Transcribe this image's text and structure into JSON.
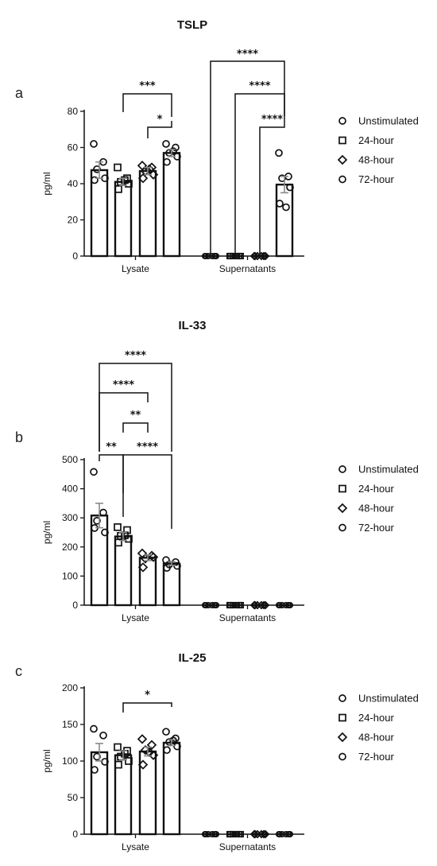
{
  "figure": {
    "panels": [
      {
        "letter": "a",
        "title": "TSLP"
      },
      {
        "letter": "b",
        "title": "IL-33"
      },
      {
        "letter": "c",
        "title": "IL-25"
      }
    ]
  },
  "chart_data": [
    {
      "type": "bar",
      "title": "TSLP",
      "panel_label": "a",
      "ylabel": "pg/ml",
      "ylim": [
        0,
        80
      ],
      "yticks": [
        0,
        20,
        40,
        60,
        80
      ],
      "groups": [
        "Lysate",
        "Supernatants"
      ],
      "legend": {
        "position": "right",
        "entries": [
          "Unstimulated",
          "24-hour",
          "48-hour",
          "72-hour"
        ],
        "markers": [
          "circle",
          "square",
          "diamond",
          "circle"
        ]
      },
      "series": [
        {
          "name": "Unstimulated",
          "values": [
            47.5,
            0
          ],
          "error": [
            4.5,
            0
          ],
          "points": [
            [
              62,
              52,
              48,
              43,
              42
            ],
            [
              0,
              0,
              0,
              0,
              0,
              0
            ]
          ]
        },
        {
          "name": "24-hour",
          "values": [
            41,
            0
          ],
          "error": [
            2,
            0
          ],
          "points": [
            [
              49,
              43,
              41,
              40,
              37,
              42
            ],
            [
              0,
              0,
              0,
              0,
              0,
              0
            ]
          ]
        },
        {
          "name": "48-hour",
          "values": [
            47,
            0
          ],
          "error": [
            2,
            0
          ],
          "points": [
            [
              50,
              49,
              47,
              45,
              43,
              48
            ],
            [
              0,
              0,
              0,
              0,
              0,
              0
            ]
          ]
        },
        {
          "name": "72-hour",
          "values": [
            57,
            39.5
          ],
          "error": [
            2,
            4.5
          ],
          "points": [
            [
              62,
              60,
              57,
              55,
              52,
              58
            ],
            [
              57,
              44,
              43,
              38,
              29,
              27
            ]
          ]
        }
      ],
      "annotations": [
        {
          "text": "***",
          "from": [
            0,
            1
          ],
          "to": [
            0,
            3
          ],
          "y": 71
        },
        {
          "text": "*",
          "from": [
            0,
            2
          ],
          "to": [
            0,
            3
          ],
          "y": 71
        },
        {
          "text": "****",
          "from": [
            1,
            0
          ],
          "to": [
            1,
            3
          ],
          "y": 71
        },
        {
          "text": "****",
          "from": [
            1,
            1
          ],
          "to": [
            1,
            3
          ],
          "y": 71
        },
        {
          "text": "****",
          "from": [
            1,
            2
          ],
          "to": [
            1,
            3
          ],
          "y": 71
        }
      ]
    },
    {
      "type": "bar",
      "title": "IL-33",
      "panel_label": "b",
      "ylabel": "pg/ml",
      "ylim": [
        0,
        500
      ],
      "yticks": [
        0,
        100,
        200,
        300,
        400,
        500
      ],
      "groups": [
        "Lysate",
        "Supernatants"
      ],
      "legend": {
        "position": "right",
        "entries": [
          "Unstimulated",
          "24-hour",
          "48-hour",
          "72-hour"
        ],
        "markers": [
          "circle",
          "square",
          "diamond",
          "circle"
        ]
      },
      "series": [
        {
          "name": "Unstimulated",
          "values": [
            308,
            0
          ],
          "error": [
            42,
            0
          ],
          "points": [
            [
              458,
              318,
              290,
              250,
              265
            ],
            [
              0,
              0,
              0,
              0,
              0,
              0
            ]
          ]
        },
        {
          "name": "24-hour",
          "values": [
            236,
            0
          ],
          "error": [
            14,
            0
          ],
          "points": [
            [
              268,
              258,
              238,
              228,
              215,
              240
            ],
            [
              0,
              0,
              0,
              0,
              0,
              0
            ]
          ]
        },
        {
          "name": "48-hour",
          "values": [
            163,
            0
          ],
          "error": [
            10,
            0
          ],
          "points": [
            [
              178,
              170,
              160,
              165,
              130
            ],
            [
              0,
              0,
              0,
              0,
              0,
              0
            ]
          ]
        },
        {
          "name": "72-hour",
          "values": [
            143,
            0
          ],
          "error": [
            6,
            0
          ],
          "points": [
            [
              155,
              148,
              140,
              135,
              128
            ],
            [
              0,
              0,
              0,
              0,
              0,
              0
            ]
          ]
        }
      ],
      "annotations": [
        {
          "text": "****",
          "from": [
            0,
            0
          ],
          "to": [
            0,
            3
          ],
          "y": 500
        },
        {
          "text": "****",
          "from": [
            0,
            0
          ],
          "to": [
            0,
            2
          ],
          "y": 500
        },
        {
          "text": "**",
          "from": [
            0,
            1
          ],
          "to": [
            0,
            2
          ],
          "y": 500
        },
        {
          "text": "**",
          "from": [
            0,
            0
          ],
          "to": [
            0,
            1
          ],
          "y": 500
        },
        {
          "text": "****",
          "from": [
            0,
            1
          ],
          "to": [
            0,
            3
          ],
          "y": 500
        }
      ]
    },
    {
      "type": "bar",
      "title": "IL-25",
      "panel_label": "c",
      "ylabel": "pg/ml",
      "ylim": [
        0,
        200
      ],
      "yticks": [
        0,
        50,
        100,
        150,
        200
      ],
      "groups": [
        "Lysate",
        "Supernatants"
      ],
      "legend": {
        "position": "right",
        "entries": [
          "Unstimulated",
          "24-hour",
          "48-hour",
          "72-hour"
        ],
        "markers": [
          "circle",
          "square",
          "diamond",
          "circle"
        ]
      },
      "series": [
        {
          "name": "Unstimulated",
          "values": [
            112,
            0
          ],
          "error": [
            12,
            0
          ],
          "points": [
            [
              144,
              135,
              106,
              99,
              88
            ],
            [
              0,
              0,
              0,
              0,
              0,
              0
            ]
          ]
        },
        {
          "name": "24-hour",
          "values": [
            108,
            0
          ],
          "error": [
            6,
            0
          ],
          "points": [
            [
              119,
              114,
              106,
              100,
              95,
              110
            ],
            [
              0,
              0,
              0,
              0,
              0,
              0
            ]
          ]
        },
        {
          "name": "48-hour",
          "values": [
            113,
            0
          ],
          "error": [
            6,
            0
          ],
          "points": [
            [
              130,
              122,
              115,
              108,
              95,
              112
            ],
            [
              0,
              0,
              0,
              0,
              0,
              0
            ]
          ]
        },
        {
          "name": "72-hour",
          "values": [
            125,
            0
          ],
          "error": [
            4,
            0
          ],
          "points": [
            [
              140,
              131,
              126,
              120,
              115,
              128
            ],
            [
              0,
              0,
              0,
              0,
              0,
              0
            ]
          ]
        }
      ],
      "annotations": [
        {
          "text": "*",
          "from": [
            0,
            1
          ],
          "to": [
            0,
            3
          ],
          "y": 150
        }
      ]
    }
  ]
}
